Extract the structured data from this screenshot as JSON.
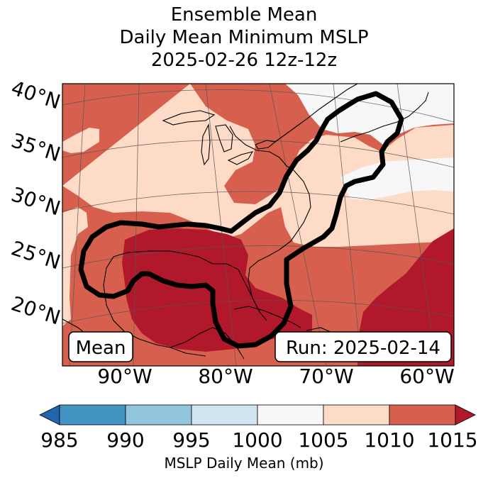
{
  "title": {
    "line1": "Ensemble Mean",
    "line2": "Daily Mean Minimum MSLP",
    "line3": "2025-02-26 12z-12z"
  },
  "lat_labels": [
    "40°N",
    "35°N",
    "30°N",
    "25°N",
    "20°N"
  ],
  "lon_labels": [
    "90°W",
    "80°W",
    "70°W",
    "60°W"
  ],
  "boxes": {
    "mean": "Mean",
    "run": "Run: 2025-02-14"
  },
  "colorbar": {
    "ticks": [
      "985",
      "990",
      "995",
      "1000",
      "1005",
      "1010",
      "1015"
    ],
    "label": "MSLP Daily Mean (mb)",
    "colors": [
      "#2166ac",
      "#4393c3",
      "#92c5de",
      "#d1e5f0",
      "#f7f7f7",
      "#fddbc7",
      "#d6604d",
      "#b2182b"
    ]
  },
  "field_colors": {
    "p1000_1005": "#f7f7f7",
    "p1005_1010": "#fddbc7",
    "p1010_1015": "#d6604d",
    "p1015_plus": "#b2182b"
  }
}
